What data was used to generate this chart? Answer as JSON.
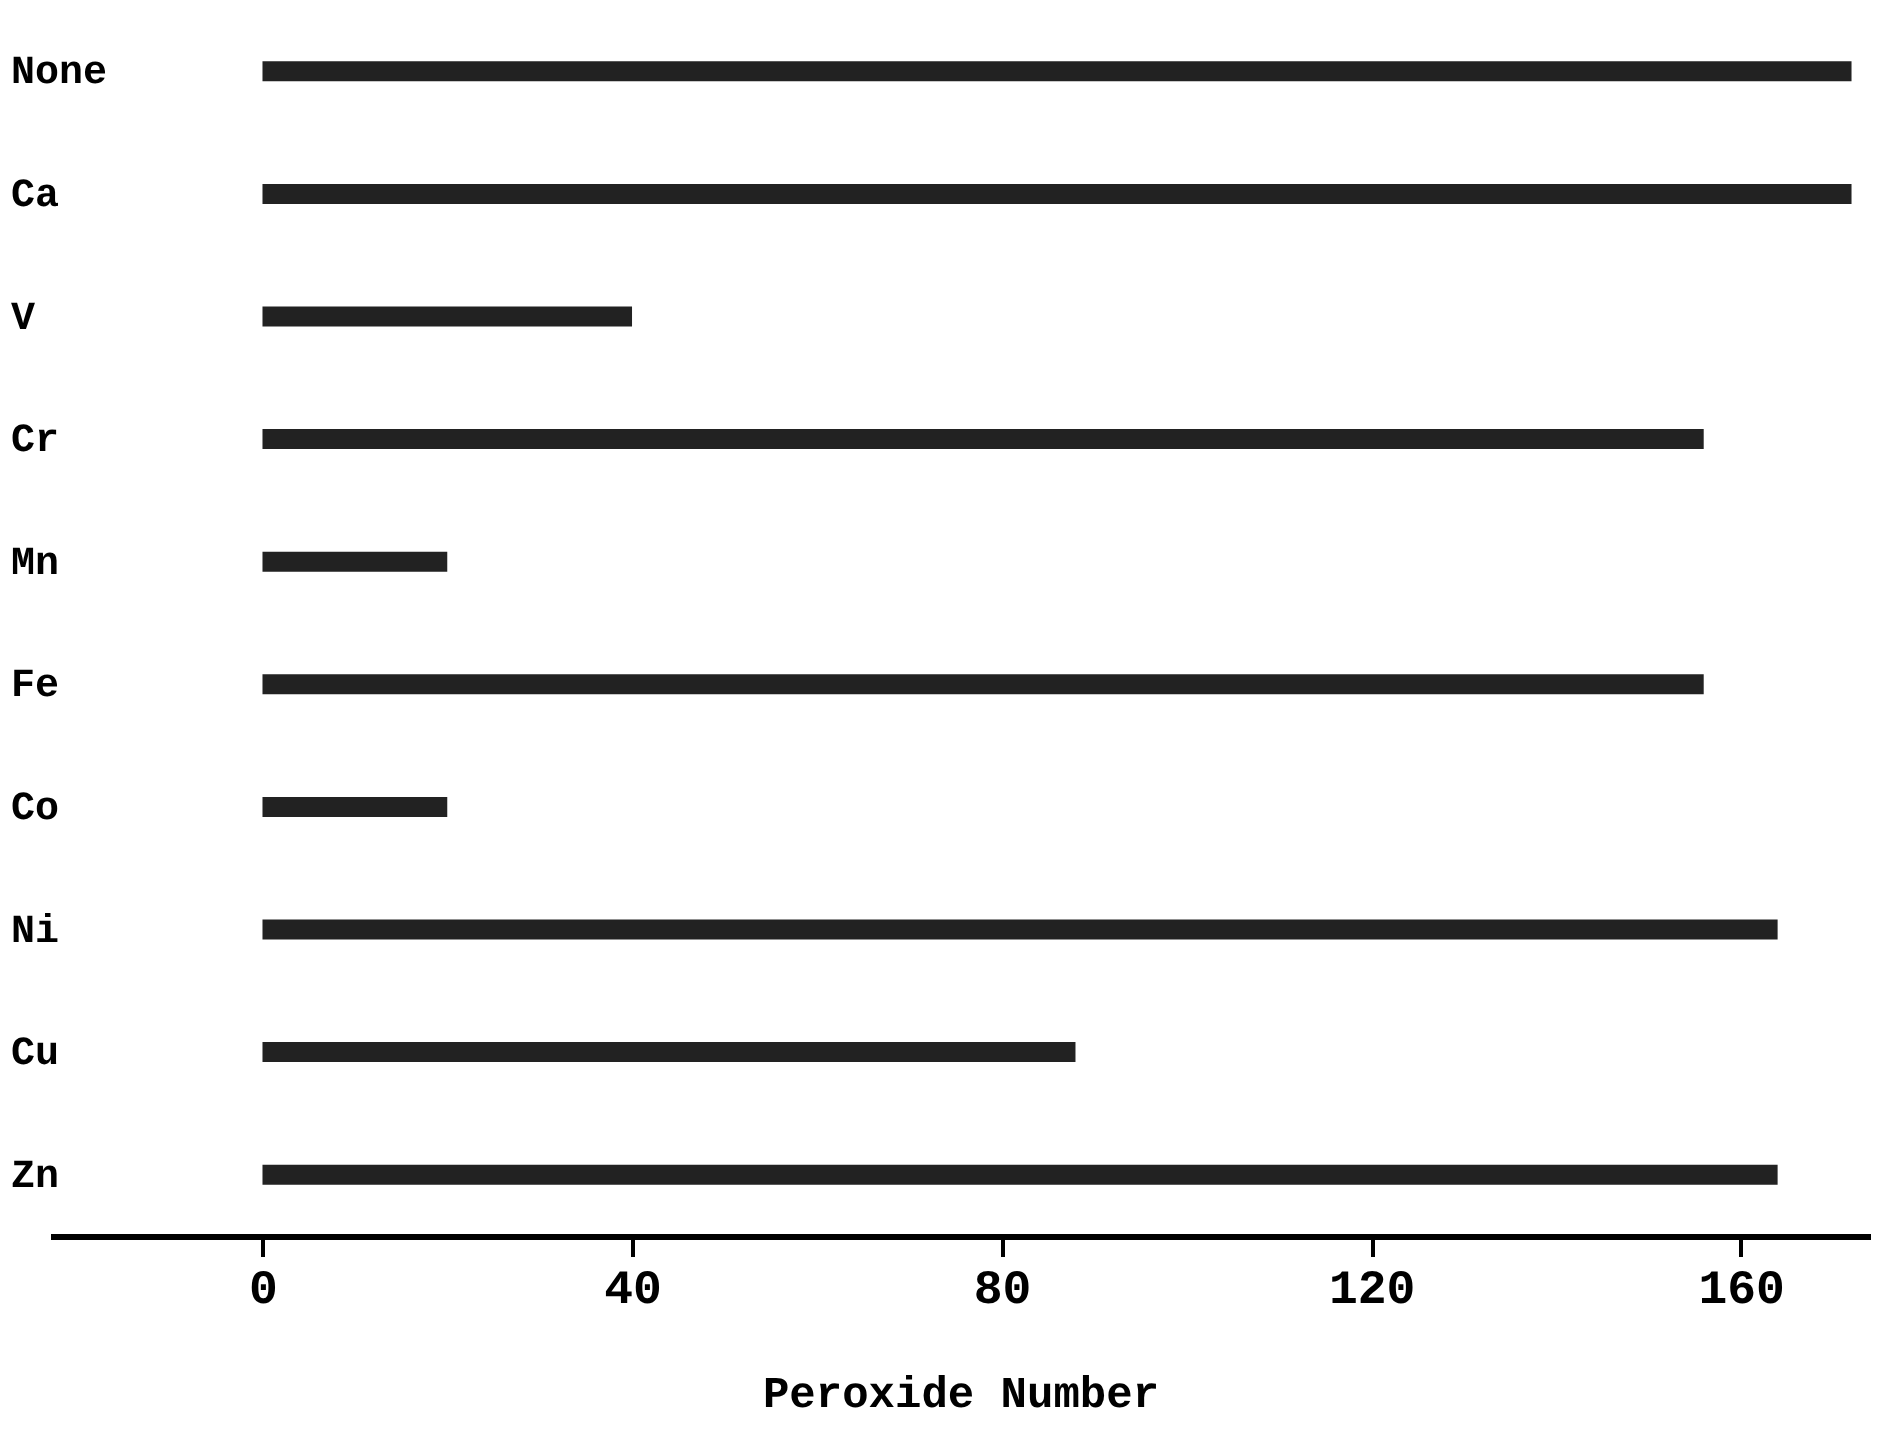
{
  "chart_data": {
    "type": "bar",
    "orientation": "horizontal",
    "xlabel": "Peroxide Number",
    "categories": [
      "None",
      "Ca",
      "V",
      "Cr",
      "Mn",
      "Fe",
      "Co",
      "Ni",
      "Cu",
      "Zn"
    ],
    "values": [
      172,
      172,
      40,
      156,
      20,
      156,
      20,
      164,
      88,
      164
    ],
    "color": "#222222",
    "xlim": [
      -23,
      174
    ],
    "xticks": [
      0,
      40,
      80,
      120,
      160
    ],
    "grid": false
  }
}
